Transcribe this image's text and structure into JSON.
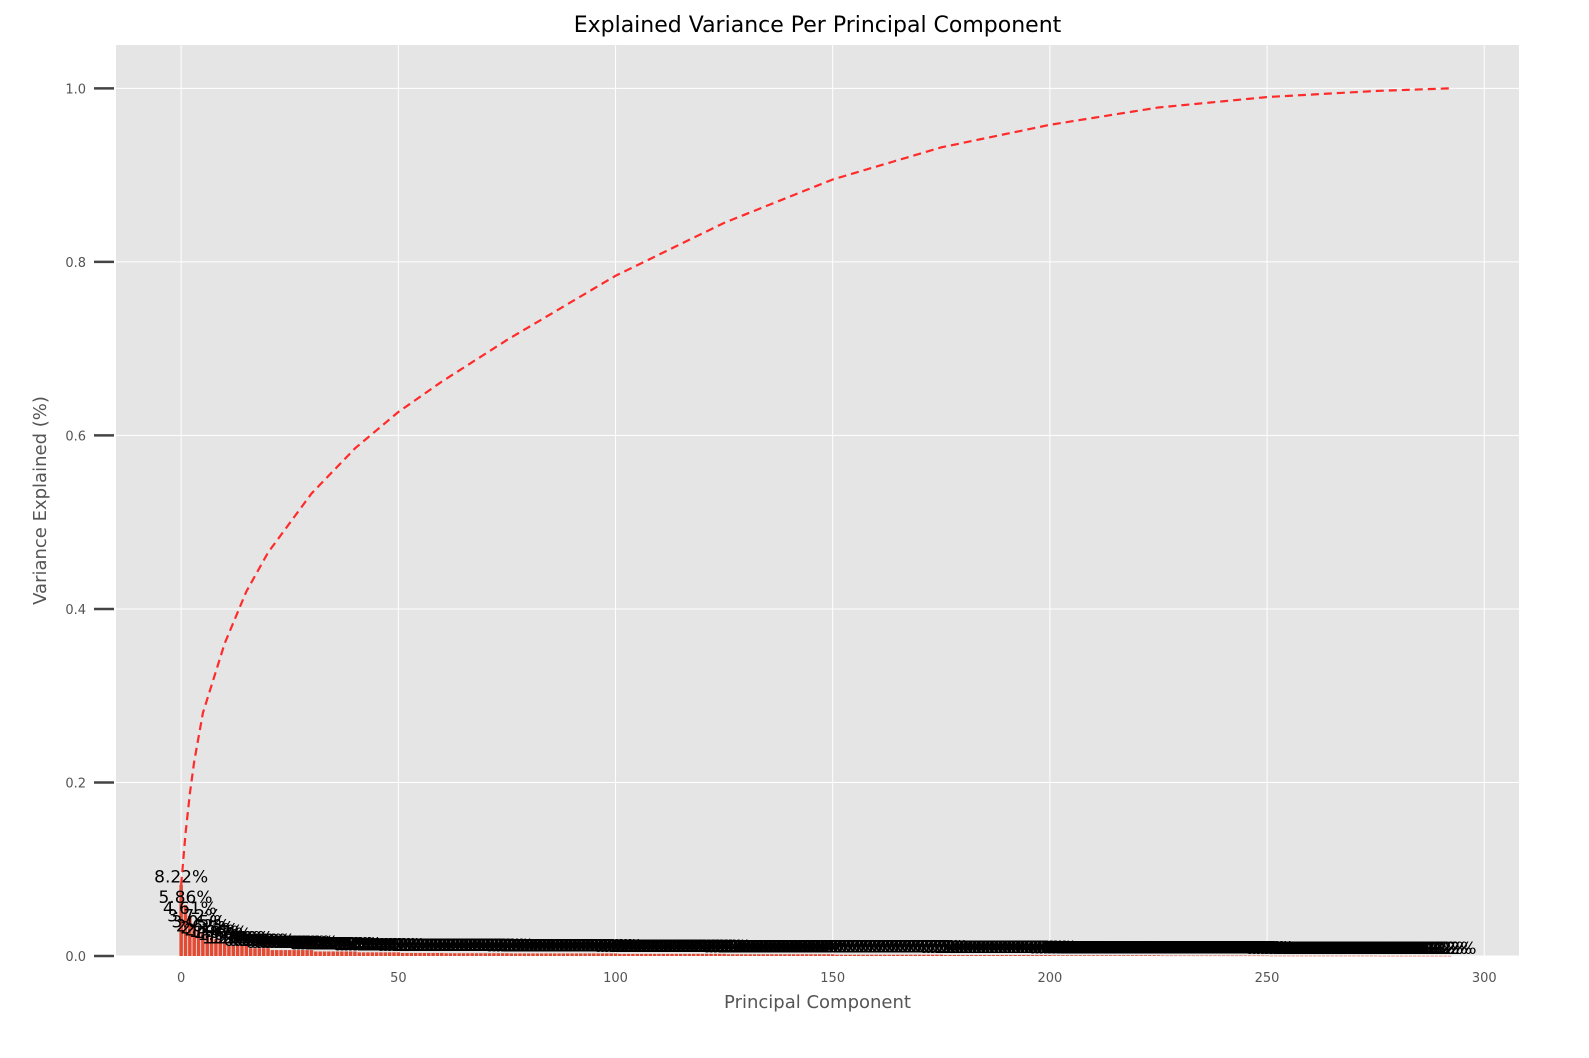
{
  "chart_data": {
    "type": "bar",
    "title": "Explained Variance Per Principal Component",
    "xlabel": "Principal Component",
    "ylabel": "Variance Explained (%)",
    "xlim": [
      -15,
      308
    ],
    "ylim": [
      0,
      1.05
    ],
    "xticks": [
      0,
      50,
      100,
      150,
      200,
      250,
      300
    ],
    "yticks": [
      0.0,
      0.2,
      0.4,
      0.6,
      0.8,
      1.0
    ],
    "grid": true,
    "n_components": 293,
    "bar_values_head": [
      0.0822,
      0.0586,
      0.0461,
      0.0372,
      0.0305,
      0.0262,
      0.0235,
      0.0213,
      0.0196,
      0.0182
    ],
    "bar_label_head": [
      "8.22%",
      "5.86%",
      "4.61%",
      "3.72%",
      "3.05%",
      "2.62%",
      "2.35%",
      "2.13%",
      "1.96%",
      "1.82%"
    ],
    "cumulative_curve": {
      "x": [
        0,
        1,
        2,
        3,
        5,
        10,
        15,
        20,
        30,
        40,
        50,
        60,
        75,
        100,
        125,
        150,
        175,
        200,
        225,
        250,
        275,
        292
      ],
      "value": [
        0.082,
        0.141,
        0.187,
        0.224,
        0.28,
        0.36,
        0.42,
        0.465,
        0.533,
        0.585,
        0.627,
        0.662,
        0.71,
        0.784,
        0.845,
        0.895,
        0.932,
        0.958,
        0.978,
        0.99,
        0.997,
        1.0
      ]
    },
    "colors": {
      "bar": "#E24A33",
      "curve": "#FF2A2A",
      "plot_bg": "#E5E5E5",
      "grid": "#FFFFFF"
    }
  }
}
